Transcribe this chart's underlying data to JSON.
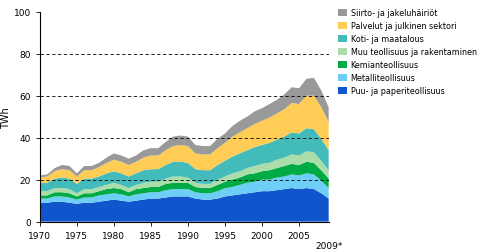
{
  "years": [
    1970,
    1971,
    1972,
    1973,
    1974,
    1975,
    1976,
    1977,
    1978,
    1979,
    1980,
    1981,
    1982,
    1983,
    1984,
    1985,
    1986,
    1987,
    1988,
    1989,
    1990,
    1991,
    1992,
    1993,
    1994,
    1995,
    1996,
    1997,
    1998,
    1999,
    2000,
    2001,
    2002,
    2003,
    2004,
    2005,
    2006,
    2007,
    2008,
    2009
  ],
  "series": {
    "Puu- ja paperiteollisuus": [
      9,
      9,
      9.5,
      9.5,
      9,
      8.5,
      9,
      9,
      9.5,
      10,
      10.5,
      10,
      9.5,
      10,
      10.5,
      11,
      11,
      11.5,
      12,
      12,
      12,
      11,
      10.5,
      10.5,
      11,
      12,
      12.5,
      13,
      13.5,
      14,
      14.5,
      14.5,
      15,
      15.5,
      16,
      15.5,
      16,
      15.5,
      13.5,
      11
    ],
    "Metalliteollisuus": [
      2,
      2,
      2.5,
      2.5,
      2.5,
      2,
      2.5,
      2.5,
      3,
      3,
      3,
      3,
      2.5,
      3,
      3,
      3,
      3,
      3.5,
      3.5,
      3.5,
      3.5,
      3,
      3,
      3,
      3.5,
      4,
      4,
      4.5,
      5,
      5,
      5.5,
      5.5,
      6,
      6,
      6.5,
      6.5,
      7,
      7,
      6,
      5
    ],
    "Kemianteollisuus": [
      1.5,
      1.5,
      2,
      2,
      2,
      1.5,
      2,
      2,
      2,
      2.5,
      2.5,
      2.5,
      2,
      2.5,
      2.5,
      2.5,
      2.5,
      3,
      3,
      3,
      3,
      2.5,
      2.5,
      2.5,
      3,
      3,
      3.5,
      3.5,
      4,
      4,
      4,
      4.5,
      4.5,
      5,
      5,
      5,
      5.5,
      5.5,
      5,
      4.5
    ],
    "Muu teollisuus ja rakentaminen": [
      2,
      2,
      2,
      2,
      2,
      1.5,
      2,
      2,
      2,
      2,
      2.5,
      2,
      2,
      2,
      2.5,
      2.5,
      2.5,
      2.5,
      3,
      3,
      2.5,
      2,
      2,
      2,
      2.5,
      2.5,
      3,
      3,
      3,
      3.5,
      3.5,
      3.5,
      4,
      4,
      4.5,
      4.5,
      5,
      5,
      4.5,
      4
    ],
    "Koti- ja maatalous": [
      4,
      4,
      4.5,
      5,
      5,
      4.5,
      5,
      5,
      5,
      5.5,
      5.5,
      5.5,
      5.5,
      5.5,
      6,
      6,
      6,
      6.5,
      7,
      7,
      7,
      6.5,
      6.5,
      6.5,
      7,
      7.5,
      8,
      8.5,
      8.5,
      9,
      9,
      9.5,
      9.5,
      10,
      10.5,
      10.5,
      11,
      11,
      10.5,
      9.5
    ],
    "Palvelut ja julkinen sektori": [
      2.5,
      3,
      3.5,
      4,
      4,
      3.5,
      4,
      4,
      4.5,
      5,
      5.5,
      5.5,
      5.5,
      5.5,
      6,
      6.5,
      6.5,
      7,
      7.5,
      8,
      8,
      7.5,
      7.5,
      7.5,
      8,
      8.5,
      9.5,
      10,
      10.5,
      11,
      11.5,
      12,
      12.5,
      13,
      14,
      14,
      15.5,
      16,
      15,
      13.5
    ],
    "Siirto- ja jakeluhäiriöt": [
      1,
      1,
      1.5,
      2,
      2,
      1.5,
      2,
      2,
      2,
      2.5,
      3,
      3,
      3,
      3,
      3.5,
      3.5,
      3.5,
      4,
      4.5,
      4.5,
      4.5,
      4,
      4,
      4,
      4.5,
      4.5,
      5,
      5.5,
      5.5,
      6,
      6,
      6.5,
      6.5,
      7,
      7.5,
      7.5,
      8,
      8.5,
      8,
      7
    ]
  },
  "colors": {
    "Puu- ja paperiteollisuus": "#1155cc",
    "Metalliteollisuus": "#6ecff6",
    "Kemianteollisuus": "#00aa44",
    "Muu teollisuus ja rakentaminen": "#aaddaa",
    "Koti- ja maatalous": "#44bbbb",
    "Palvelut ja julkinen sektori": "#ffcc55",
    "Siirto- ja jakeluhäiriöt": "#999999"
  },
  "ylabel": "TWh",
  "ylim": [
    0,
    100
  ],
  "yticks": [
    0,
    20,
    40,
    60,
    80,
    100
  ],
  "xticks": [
    1970,
    1975,
    1980,
    1985,
    1990,
    1995,
    2000,
    2005
  ],
  "xlim": [
    1970,
    2009
  ],
  "legend_order": [
    "Siirto- ja jakeluhäiriöt",
    "Palvelut ja julkinen sektori",
    "Koti- ja maatalous",
    "Muu teollisuus ja rakentaminen",
    "Kemianteollisuus",
    "Metalliteollisuus",
    "Puu- ja paperiteollisuus"
  ],
  "stack_order": [
    "Puu- ja paperiteollisuus",
    "Metalliteollisuus",
    "Kemianteollisuus",
    "Muu teollisuus ja rakentaminen",
    "Koti- ja maatalous",
    "Palvelut ja julkinen sektori",
    "Siirto- ja jakeluhäiriöt"
  ]
}
